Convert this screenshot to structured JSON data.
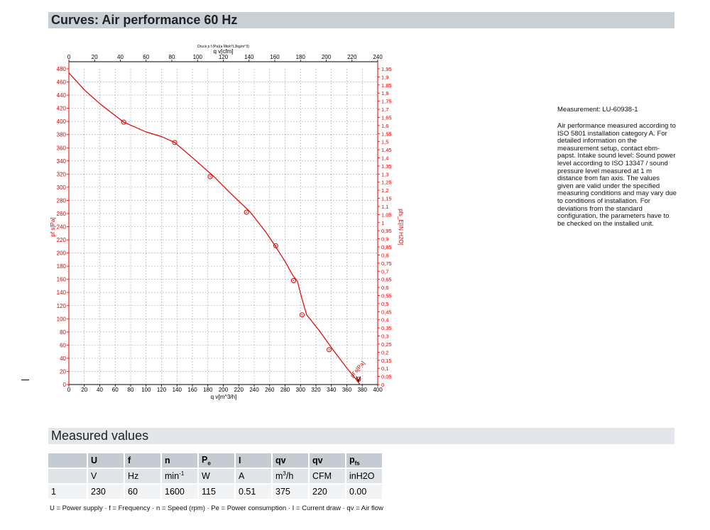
{
  "page": {
    "section_curves": "Curves: Air performance 60 Hz",
    "section_measured": "Measured values",
    "measurement_id": "Measurement: LU-60938-1",
    "description": "Air performance measured according to ISO 5801 installation category A. For detailed information on the measurement setup, contact ebm-papst. Intake sound level: Sound power level according to ISO 13347 / sound pressure level measured at 1 m distance from fan axis. The values given are valid under the specified measuring conditions and may vary due to conditions of installation. For deviations from the standard configuration, the parameters have to be checked on the installed unit.",
    "legend": "U = Power supply · f = Frequency · n = Speed (rpm) · Pe = Power consumption · I = Current draw · qv = Air flow"
  },
  "chart_data": {
    "type": "line",
    "title": "Druck p f (Pa)(a Mtoh*L3kg/m^3)",
    "xlabel": "q v[m^3/h]",
    "x2label": "q v[cfm]",
    "ylabel": "pf s[Pa]",
    "y2label": "pfs_E[IN H2O]",
    "xlim": [
      0,
      400
    ],
    "x2lim": [
      0,
      240
    ],
    "ylim": [
      0,
      480
    ],
    "y2lim": [
      0,
      1.95
    ],
    "x_ticks": [
      0,
      20,
      40,
      60,
      80,
      100,
      120,
      140,
      160,
      180,
      200,
      220,
      240,
      260,
      280,
      300,
      320,
      340,
      360,
      380,
      400
    ],
    "x2_ticks": [
      0,
      20,
      40,
      60,
      80,
      100,
      120,
      140,
      160,
      180,
      200,
      220,
      240
    ],
    "y_ticks": [
      0,
      20,
      40,
      60,
      80,
      100,
      120,
      140,
      160,
      180,
      200,
      220,
      240,
      260,
      280,
      300,
      320,
      340,
      360,
      380,
      400,
      420,
      440,
      460,
      480
    ],
    "y2_ticks": [
      "0",
      "0,05",
      "0,1",
      "0,15",
      "0,2",
      "0,25",
      "0,3",
      "0,35",
      "0,4",
      "0,45",
      "0,5",
      "0,55",
      "0,6",
      "0,65",
      "0,7",
      "0,75",
      "0,8",
      "0,85",
      "0,9",
      "0,95",
      "1",
      "1,05",
      "1,1",
      "1,15",
      "1,2",
      "1,25",
      "1,3",
      "1,35",
      "1,4",
      "1,45",
      "1,5",
      "1,55",
      "1,6",
      "1,65",
      "1,7",
      "1,75",
      "1,8",
      "1,85",
      "1,9",
      "1,95"
    ],
    "grid": true,
    "curve_label": "pf s[Pa]",
    "series": [
      {
        "color": "#e00000",
        "x": [
          0,
          20,
          40,
          71,
          100,
          120,
          137,
          160,
          188,
          210,
          235,
          255,
          267,
          280,
          290,
          296,
          302,
          308,
          325,
          342,
          360,
          372,
          377
        ],
        "y": [
          474,
          448,
          427,
          399,
          384,
          377,
          368,
          345,
          316,
          290,
          262,
          232,
          211,
          187,
          166,
          157,
          130,
          106,
          81,
          53,
          25,
          8,
          0
        ]
      }
    ],
    "markers": {
      "x": [
        71,
        137,
        183,
        230,
        268,
        291,
        302,
        337,
        375
      ],
      "y": [
        399,
        368,
        316,
        262,
        211,
        158,
        106,
        53,
        8
      ]
    }
  },
  "table": {
    "headers": [
      "",
      "U",
      "f",
      "n",
      "P",
      "I",
      "qv",
      "qv",
      "p"
    ],
    "header_subs": [
      "",
      "",
      "",
      "",
      "e",
      "",
      "",
      "",
      "fs"
    ],
    "units": [
      "",
      "V",
      "Hz",
      "min",
      "W",
      "A",
      "m",
      "CFM",
      "inH2O"
    ],
    "units_sup": [
      "",
      "",
      "",
      "-1",
      "",
      "",
      "3",
      "",
      ""
    ],
    "units_suffix": [
      "",
      "",
      "",
      "",
      "",
      "",
      "/h",
      "",
      ""
    ],
    "rows": [
      [
        "1",
        "230",
        "60",
        "1600",
        "115",
        "0.51",
        "375",
        "220",
        "0.00"
      ]
    ]
  }
}
